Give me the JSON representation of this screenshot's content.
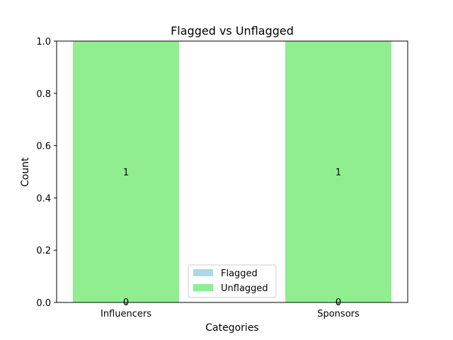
{
  "chart_data": {
    "type": "bar",
    "stacked": true,
    "title": "Flagged vs Unflagged",
    "xlabel": "Categories",
    "ylabel": "Count",
    "categories": [
      "Influencers",
      "Sponsors"
    ],
    "ylim": [
      0,
      1.0
    ],
    "yticks": [
      "0.0",
      "0.2",
      "0.4",
      "0.6",
      "0.8",
      "1.0"
    ],
    "ytick_values": [
      0,
      0.2,
      0.4,
      0.6,
      0.8,
      1.0
    ],
    "series": [
      {
        "name": "Flagged",
        "values": [
          0,
          0
        ],
        "color": "#add8e6"
      },
      {
        "name": "Unflagged",
        "values": [
          1,
          1
        ],
        "color": "#90ee90"
      }
    ],
    "data_labels": {
      "flagged": [
        "0",
        "0"
      ],
      "unflagged": [
        "1",
        "1"
      ]
    },
    "grid": false,
    "legend": "lower-center"
  }
}
